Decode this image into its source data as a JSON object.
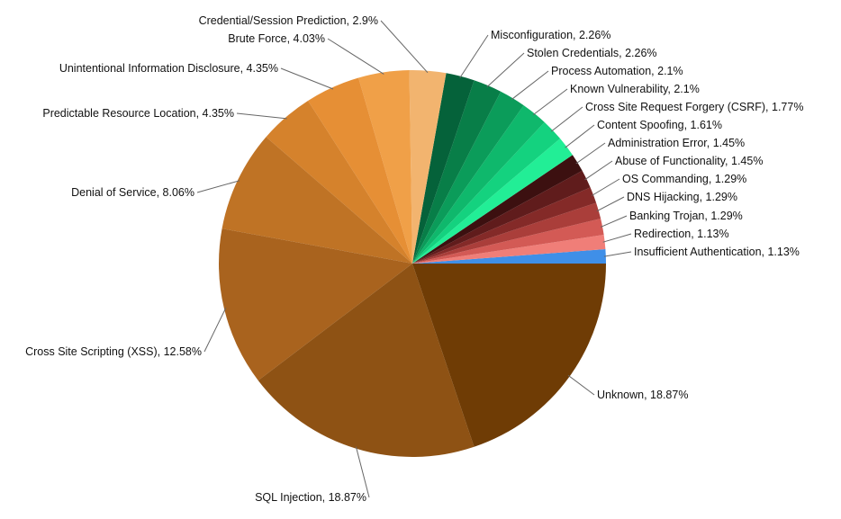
{
  "chart_data": {
    "type": "pie",
    "title": "",
    "start_angle_deg": 0,
    "direction": "counterclockwise",
    "slices": [
      {
        "label": "Insufficient Authentication",
        "value": 1.13,
        "color": "#3f8fe8"
      },
      {
        "label": "Redirection",
        "value": 1.13,
        "color": "#f07e78"
      },
      {
        "label": "Banking Trojan",
        "value": 1.29,
        "color": "#d35a55"
      },
      {
        "label": "DNS Hijacking",
        "value": 1.29,
        "color": "#aa3e3a"
      },
      {
        "label": "OS Commanding",
        "value": 1.29,
        "color": "#842a28"
      },
      {
        "label": "Abuse of Functionality",
        "value": 1.45,
        "color": "#601c1c"
      },
      {
        "label": "Administration Error",
        "value": 1.45,
        "color": "#3c1010"
      },
      {
        "label": "Content Spoofing",
        "value": 1.61,
        "color": "#22ee96"
      },
      {
        "label": "Cross Site Request Forgery (CSRF)",
        "value": 1.77,
        "color": "#14d27f"
      },
      {
        "label": "Known Vulnerability",
        "value": 2.1,
        "color": "#0fb86c"
      },
      {
        "label": "Process Automation",
        "value": 2.1,
        "color": "#0b9c5a"
      },
      {
        "label": "Stolen Credentials",
        "value": 2.26,
        "color": "#087e48"
      },
      {
        "label": "Misconfiguration",
        "value": 2.26,
        "color": "#05623a"
      },
      {
        "label": "Credential/Session Prediction",
        "value": 2.9,
        "color": "#f2b46f"
      },
      {
        "label": "Brute Force",
        "value": 4.03,
        "color": "#f0a048"
      },
      {
        "label": "Unintentional Information Disclosure",
        "value": 4.35,
        "color": "#e68f35"
      },
      {
        "label": "Predictable Resource Location",
        "value": 4.35,
        "color": "#d5822c"
      },
      {
        "label": "Denial of Service",
        "value": 8.06,
        "color": "#bf7325"
      },
      {
        "label": "Cross Site Scripting (XSS)",
        "value": 12.58,
        "color": "#a9631e"
      },
      {
        "label": "SQL Injection",
        "value": 18.87,
        "color": "#8e5214"
      },
      {
        "label": "Unknown",
        "value": 18.87,
        "color": "#6f3c05"
      }
    ]
  }
}
